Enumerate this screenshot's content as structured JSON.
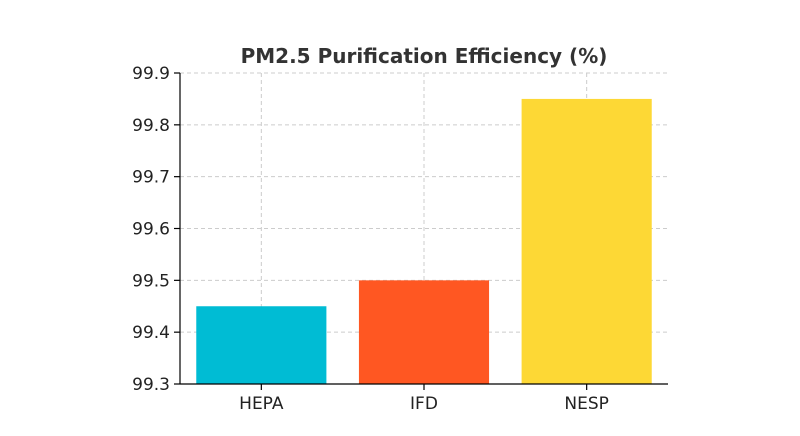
{
  "chart_data": {
    "type": "bar",
    "title": "PM2.5 Purification Efficiency (%)",
    "xlabel": "",
    "ylabel": "",
    "categories": [
      "HEPA",
      "IFD",
      "NESP"
    ],
    "values": [
      99.45,
      99.5,
      99.85
    ],
    "colors": [
      "#00bcd4",
      "#ff5722",
      "#fdd835"
    ],
    "ylim": [
      99.3,
      99.9
    ],
    "yticks": [
      "99.3",
      "99.4",
      "99.5",
      "99.6",
      "99.7",
      "99.8",
      "99.9"
    ],
    "grid": true,
    "legend": "none"
  }
}
